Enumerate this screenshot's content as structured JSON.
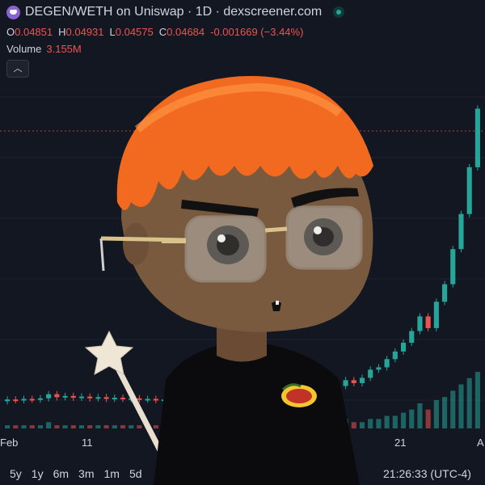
{
  "header": {
    "pair_title": "DEGEN/WETH on Uniswap · 1D · dexscreener.com",
    "logo_icon": "degen-hat-icon",
    "status_icon": "live-dot-icon"
  },
  "ohlc": {
    "open_label": "O",
    "open": "0.04851",
    "high_label": "H",
    "high": "0.04931",
    "low_label": "L",
    "low": "0.04575",
    "close_label": "C",
    "close": "0.04684",
    "change": "-0.001669 (−3.44%)"
  },
  "volume": {
    "label": "Volume",
    "value": "3.155M"
  },
  "collapse_icon": "chevron-up-icon",
  "x_axis": [
    "Feb",
    "11",
    "21",
    "A"
  ],
  "range_buttons": [
    "5y",
    "1y",
    "6m",
    "3m",
    "1m",
    "5d"
  ],
  "clock": "21:26:33 (UTC-4)",
  "colors": {
    "up": "#26a69a",
    "down": "#ef5350",
    "background": "#131722"
  },
  "chart_data": {
    "type": "candlestick",
    "series": [
      {
        "o": 0.004,
        "c": 0.0043
      },
      {
        "o": 0.0043,
        "c": 0.0042
      },
      {
        "o": 0.0042,
        "c": 0.0044
      },
      {
        "o": 0.0044,
        "c": 0.0043
      },
      {
        "o": 0.0043,
        "c": 0.0045
      },
      {
        "o": 0.0045,
        "c": 0.0052
      },
      {
        "o": 0.0052,
        "c": 0.0047
      },
      {
        "o": 0.0047,
        "c": 0.0049
      },
      {
        "o": 0.0049,
        "c": 0.0046
      },
      {
        "o": 0.0046,
        "c": 0.0048
      },
      {
        "o": 0.0048,
        "c": 0.0045
      },
      {
        "o": 0.0045,
        "c": 0.0047
      },
      {
        "o": 0.0047,
        "c": 0.0044
      },
      {
        "o": 0.0044,
        "c": 0.0046
      },
      {
        "o": 0.0046,
        "c": 0.0044
      },
      {
        "o": 0.0044,
        "c": 0.0045
      },
      {
        "o": 0.0045,
        "c": 0.0043
      },
      {
        "o": 0.0043,
        "c": 0.0044
      },
      {
        "o": 0.0044,
        "c": 0.0042
      },
      {
        "o": 0.0042,
        "c": 0.0043
      },
      {
        "o": 0.0043,
        "c": 0.0042
      },
      {
        "o": 0.0042,
        "c": 0.0043
      },
      {
        "o": 0.0043,
        "c": 0.0041
      },
      {
        "o": 0.0041,
        "c": 0.0042
      },
      {
        "o": 0.0042,
        "c": 0.0041
      },
      {
        "o": 0.0041,
        "c": 0.0043
      },
      {
        "o": 0.0043,
        "c": 0.0042
      },
      {
        "o": 0.0042,
        "c": 0.0044
      },
      {
        "o": 0.0044,
        "c": 0.0043
      },
      {
        "o": 0.0043,
        "c": 0.0045
      },
      {
        "o": 0.0045,
        "c": 0.0048
      },
      {
        "o": 0.0048,
        "c": 0.005
      },
      {
        "o": 0.005,
        "c": 0.0055
      },
      {
        "o": 0.0055,
        "c": 0.0053
      },
      {
        "o": 0.0053,
        "c": 0.0056
      },
      {
        "o": 0.0056,
        "c": 0.0054
      },
      {
        "o": 0.0054,
        "c": 0.0057
      },
      {
        "o": 0.0057,
        "c": 0.0055
      },
      {
        "o": 0.0055,
        "c": 0.006
      },
      {
        "o": 0.006,
        "c": 0.0058
      },
      {
        "o": 0.0058,
        "c": 0.0066
      },
      {
        "o": 0.0066,
        "c": 0.0076
      },
      {
        "o": 0.0076,
        "c": 0.0071
      },
      {
        "o": 0.0071,
        "c": 0.008
      },
      {
        "o": 0.008,
        "c": 0.0094
      },
      {
        "o": 0.0094,
        "c": 0.0098
      },
      {
        "o": 0.0098,
        "c": 0.0112
      },
      {
        "o": 0.0112,
        "c": 0.0125
      },
      {
        "o": 0.0125,
        "c": 0.014
      },
      {
        "o": 0.014,
        "c": 0.016
      },
      {
        "o": 0.016,
        "c": 0.0185
      },
      {
        "o": 0.0185,
        "c": 0.0165
      },
      {
        "o": 0.0165,
        "c": 0.021
      },
      {
        "o": 0.021,
        "c": 0.024
      },
      {
        "o": 0.024,
        "c": 0.03
      },
      {
        "o": 0.03,
        "c": 0.036
      },
      {
        "o": 0.036,
        "c": 0.044
      },
      {
        "o": 0.044,
        "c": 0.054
      }
    ],
    "volumes": [
      1,
      1,
      1,
      1,
      1,
      2,
      1,
      1,
      1,
      1,
      1,
      1,
      1,
      1,
      1,
      1,
      1,
      1,
      1,
      1,
      1,
      1,
      1,
      1,
      1,
      1,
      1,
      1,
      1,
      1,
      1,
      1,
      2,
      1,
      1,
      1,
      1,
      1,
      2,
      1,
      2,
      3,
      2,
      2,
      3,
      3,
      4,
      4,
      5,
      6,
      8,
      6,
      9,
      10,
      12,
      14,
      16,
      18
    ]
  }
}
